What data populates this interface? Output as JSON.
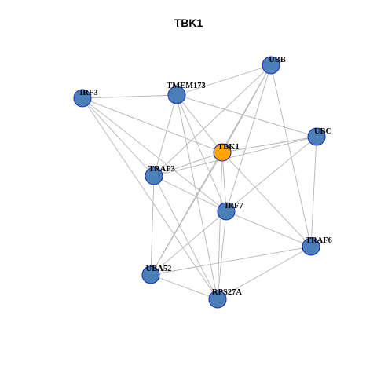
{
  "title": "TBK1",
  "colors": {
    "node": "#4a7fb8",
    "center": "#ffa500",
    "edge": "#b4b4b4",
    "border": "#1d2fbf"
  },
  "nodes": [
    {
      "id": "UBB",
      "label": "UBB",
      "center": false
    },
    {
      "id": "TMEM173",
      "label": "TMEM173",
      "center": false
    },
    {
      "id": "IRF3",
      "label": "IRF3",
      "center": false
    },
    {
      "id": "UBC",
      "label": "UBC",
      "center": false
    },
    {
      "id": "TBK1",
      "label": "TBK1",
      "center": true
    },
    {
      "id": "TRAF3",
      "label": "TRAF3",
      "center": false
    },
    {
      "id": "IRF7",
      "label": "IRF7",
      "center": false
    },
    {
      "id": "TRAF6",
      "label": "TRAF6",
      "center": false
    },
    {
      "id": "UBA52",
      "label": "UBA52",
      "center": false
    },
    {
      "id": "RPS27A",
      "label": "RPS27A",
      "center": false
    }
  ],
  "edges": [
    [
      "TMEM173",
      "UBB"
    ],
    [
      "TMEM173",
      "IRF3"
    ],
    [
      "TMEM173",
      "UBC"
    ],
    [
      "TMEM173",
      "TBK1"
    ],
    [
      "TMEM173",
      "TRAF3"
    ],
    [
      "TMEM173",
      "RPS27A"
    ],
    [
      "TMEM173",
      "IRF7"
    ],
    [
      "IRF3",
      "TBK1"
    ],
    [
      "IRF3",
      "TRAF3"
    ],
    [
      "IRF3",
      "IRF7"
    ],
    [
      "IRF3",
      "RPS27A"
    ],
    [
      "UBB",
      "TRAF3"
    ],
    [
      "UBB",
      "TBK1"
    ],
    [
      "UBB",
      "IRF7"
    ],
    [
      "UBB",
      "TRAF6"
    ],
    [
      "UBB",
      "UBA52"
    ],
    [
      "UBC",
      "TBK1"
    ],
    [
      "UBC",
      "TRAF3"
    ],
    [
      "UBC",
      "IRF7"
    ],
    [
      "UBC",
      "TRAF6"
    ],
    [
      "TBK1",
      "TRAF3"
    ],
    [
      "TBK1",
      "IRF7"
    ],
    [
      "TBK1",
      "UBA52"
    ],
    [
      "TBK1",
      "RPS27A"
    ],
    [
      "TBK1",
      "TRAF6"
    ],
    [
      "TRAF3",
      "IRF7"
    ],
    [
      "TRAF3",
      "UBA52"
    ],
    [
      "TRAF3",
      "RPS27A"
    ],
    [
      "IRF7",
      "TRAF6"
    ],
    [
      "IRF7",
      "UBA52"
    ],
    [
      "IRF7",
      "RPS27A"
    ],
    [
      "TRAF6",
      "UBA52"
    ],
    [
      "TRAF6",
      "RPS27A"
    ],
    [
      "UBA52",
      "RPS27A"
    ]
  ]
}
